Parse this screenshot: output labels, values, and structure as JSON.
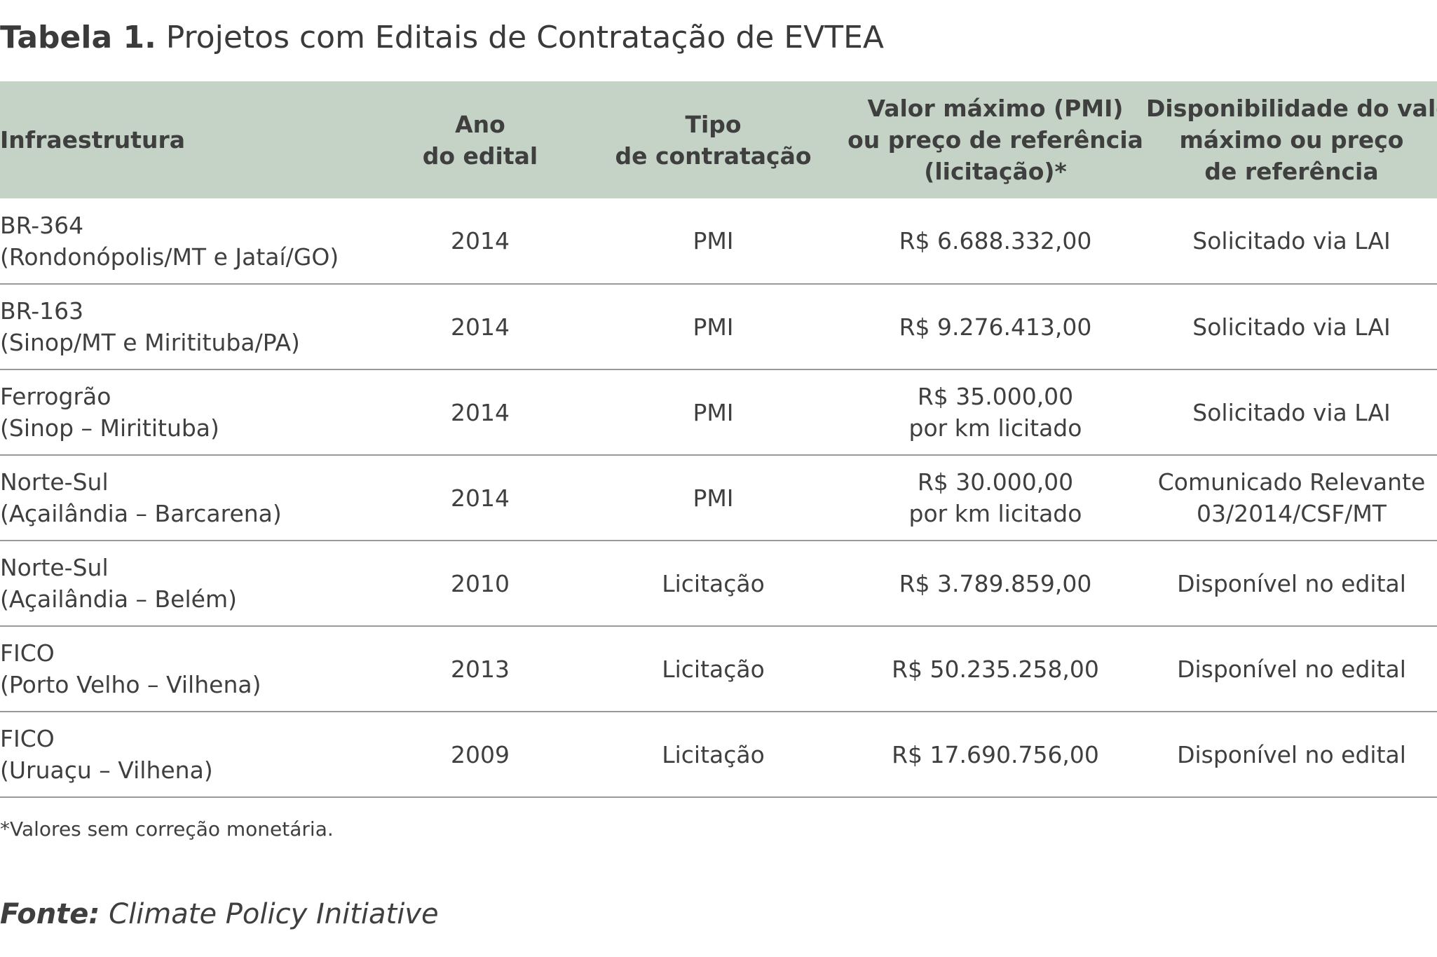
{
  "title": {
    "number": "Tabela 1.",
    "text": "Projetos com Editais de Contratação de EVTEA"
  },
  "table": {
    "headers": [
      [
        "Infraestrutura"
      ],
      [
        "Ano",
        "do edital"
      ],
      [
        "Tipo",
        "de contratação"
      ],
      [
        "Valor máximo (PMI)",
        "ou preço de referência",
        "(licitação)*"
      ],
      [
        "Disponibilidade do valor",
        "máximo ou preço",
        "de referência"
      ]
    ],
    "rows": [
      {
        "infra": [
          "BR-364",
          "(Rondonópolis/MT e Jataí/GO)"
        ],
        "ano": "2014",
        "tipo": "PMI",
        "valor": [
          "R$ 6.688.332,00"
        ],
        "disp": [
          "Solicitado via LAI"
        ]
      },
      {
        "infra": [
          "BR-163",
          "(Sinop/MT e Miritituba/PA)"
        ],
        "ano": "2014",
        "tipo": "PMI",
        "valor": [
          "R$ 9.276.413,00"
        ],
        "disp": [
          "Solicitado via LAI"
        ]
      },
      {
        "infra": [
          "Ferrogrão",
          "(Sinop – Miritituba)"
        ],
        "ano": "2014",
        "tipo": "PMI",
        "valor": [
          "R$ 35.000,00",
          "por km licitado"
        ],
        "disp": [
          "Solicitado via LAI"
        ]
      },
      {
        "infra": [
          "Norte-Sul",
          "(Açailândia – Barcarena)"
        ],
        "ano": "2014",
        "tipo": "PMI",
        "valor": [
          "R$ 30.000,00",
          "por km licitado"
        ],
        "disp": [
          "Comunicado Relevante",
          "03/2014/CSF/MT"
        ]
      },
      {
        "infra": [
          "Norte-Sul",
          "(Açailândia – Belém)"
        ],
        "ano": "2010",
        "tipo": "Licitação",
        "valor": [
          "R$ 3.789.859,00"
        ],
        "disp": [
          "Disponível no edital"
        ]
      },
      {
        "infra": [
          "FICO",
          "(Porto Velho – Vilhena)"
        ],
        "ano": "2013",
        "tipo": "Licitação",
        "valor": [
          "R$ 50.235.258,00"
        ],
        "disp": [
          "Disponível no edital"
        ]
      },
      {
        "infra": [
          "FICO",
          "(Uruaçu – Vilhena)"
        ],
        "ano": "2009",
        "tipo": "Licitação",
        "valor": [
          "R$ 17.690.756,00"
        ],
        "disp": [
          "Disponível no edital"
        ]
      }
    ]
  },
  "footnote": "*Valores sem correção monetária.",
  "source": {
    "label": "Fonte:",
    "text": "Climate Policy Initiative"
  }
}
